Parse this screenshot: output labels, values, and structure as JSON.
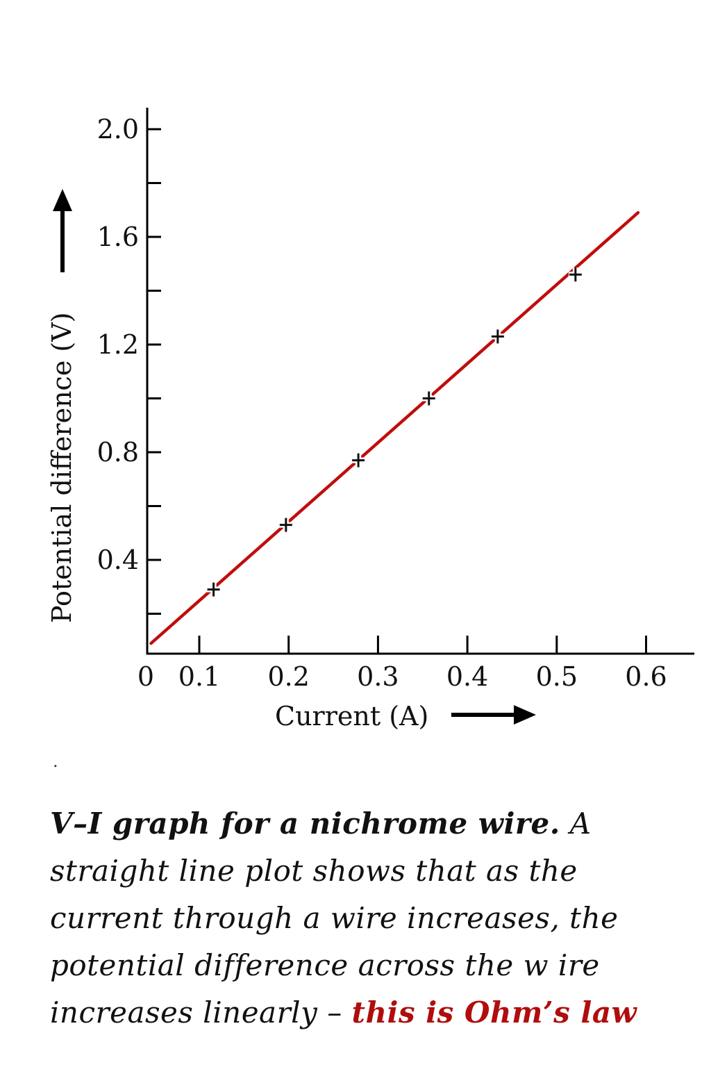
{
  "chart_data": {
    "type": "scatter",
    "xlabel": "Current (A)",
    "ylabel": "Potential difference (V)",
    "x_ticks": [
      "0",
      "0.1",
      "0.2",
      "0.3",
      "0.4",
      "0.5",
      "0.6"
    ],
    "y_ticks": [
      "0.4",
      "0.8",
      "1.2",
      "1.6",
      "2.0"
    ],
    "y_minor_ticks": [
      0.2,
      0.6,
      1.0,
      1.4,
      1.8
    ],
    "xlim": [
      0,
      0.65
    ],
    "ylim": [
      0.05,
      2.08
    ],
    "grid": false,
    "marker": "plus",
    "points": [
      {
        "x": 0.116,
        "y": 0.29
      },
      {
        "x": 0.197,
        "y": 0.53
      },
      {
        "x": 0.278,
        "y": 0.77
      },
      {
        "x": 0.357,
        "y": 1.0
      },
      {
        "x": 0.434,
        "y": 1.23
      },
      {
        "x": 0.521,
        "y": 1.46
      }
    ],
    "fit_line": {
      "x": [
        0.046,
        0.591
      ],
      "y": [
        0.09,
        1.69
      ],
      "color": "#c00d0d"
    },
    "point_color": "#111111"
  },
  "caption": {
    "bold_part": "V–I graph for a nichrome wire.",
    "text_part": " A straight line plot shows that as the current through a wire increases, the potential difference across the w ire increases linearly – ",
    "highlight": "this is Ohm’s law",
    "highlight_color": "#b00d0d"
  },
  "stray_mark": "."
}
